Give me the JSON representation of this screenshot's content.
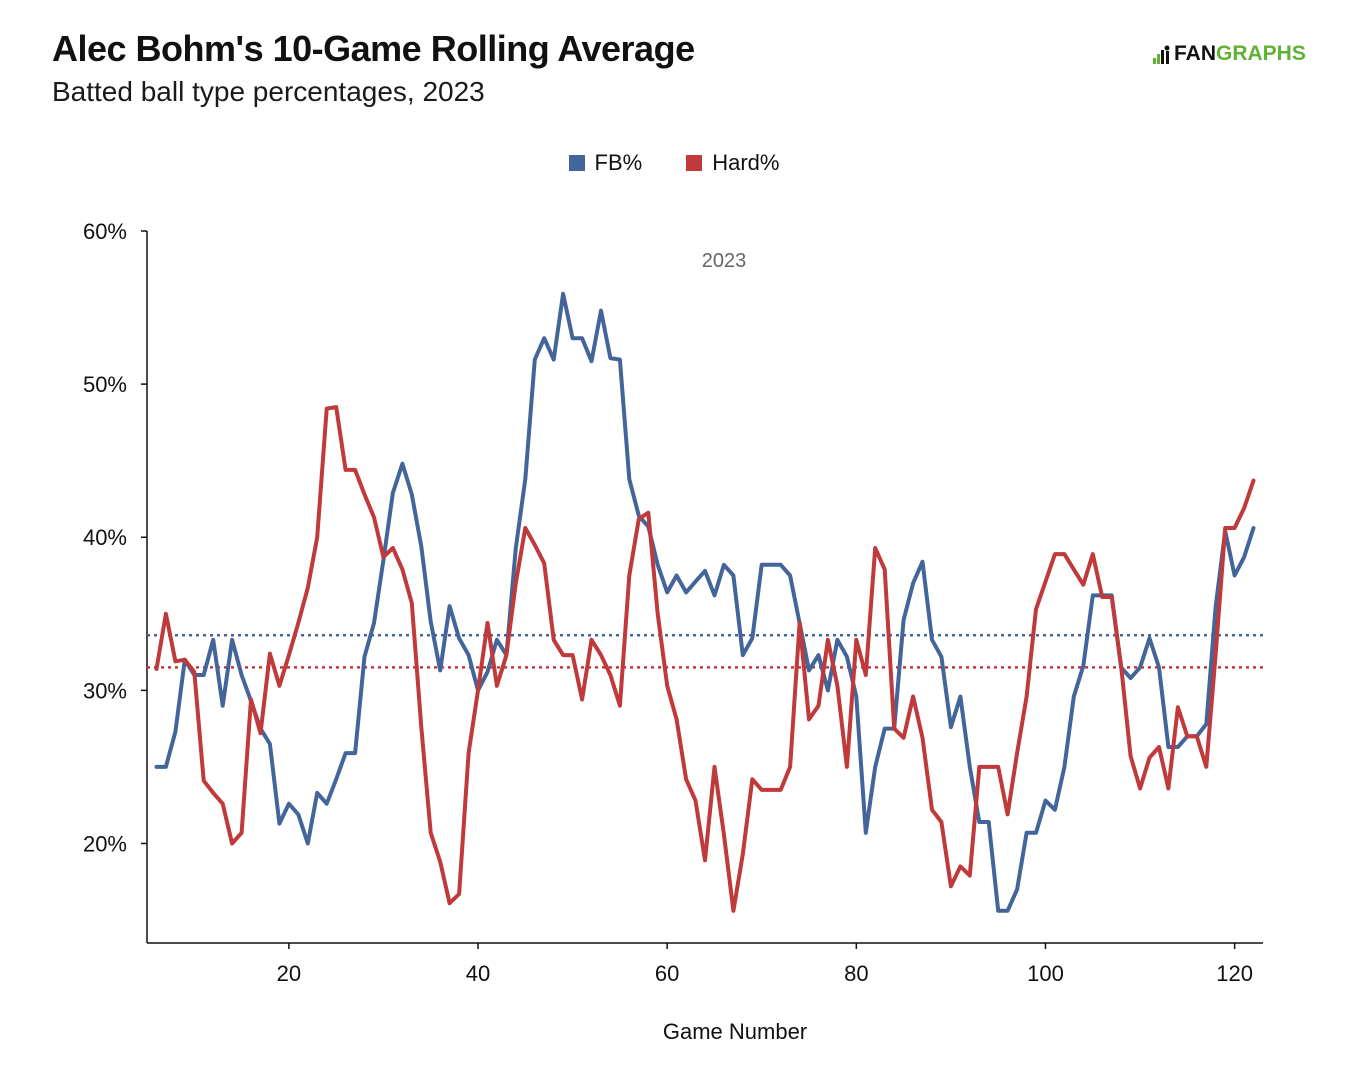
{
  "header": {
    "title": "Alec Bohm's 10-Game Rolling Average",
    "subtitle": "Batted ball type percentages, 2023",
    "logo_fan": "FAN",
    "logo_graphs": "GRAPHS"
  },
  "colors": {
    "fb": "#43659a",
    "hard": "#c0393b",
    "axis": "#111111",
    "annotation": "#666666",
    "logo_green": "#5fb233"
  },
  "chart_data": {
    "type": "line",
    "annotation": "2023",
    "xlabel": "Game Number",
    "ylabel": "",
    "xlim": [
      5,
      123
    ],
    "ylim": [
      13.5,
      60
    ],
    "xticks": [
      20,
      40,
      60,
      80,
      100,
      120
    ],
    "xtick_labels": [
      "20",
      "40",
      "60",
      "80",
      "100",
      "120"
    ],
    "yticks": [
      20,
      30,
      40,
      50,
      60
    ],
    "ytick_labels": [
      "20%",
      "30%",
      "40%",
      "50%",
      "60%"
    ],
    "legend_position": "top-center",
    "x": [
      6,
      7,
      8,
      9,
      10,
      11,
      12,
      13,
      14,
      15,
      16,
      17,
      18,
      19,
      20,
      21,
      22,
      23,
      24,
      25,
      26,
      27,
      28,
      29,
      30,
      31,
      32,
      33,
      34,
      35,
      36,
      37,
      38,
      39,
      40,
      41,
      42,
      43,
      44,
      45,
      46,
      47,
      48,
      49,
      50,
      51,
      52,
      53,
      54,
      55,
      56,
      57,
      58,
      59,
      60,
      61,
      62,
      63,
      64,
      65,
      66,
      67,
      68,
      69,
      70,
      71,
      72,
      73,
      74,
      75,
      76,
      77,
      78,
      79,
      80,
      81,
      82,
      83,
      84,
      85,
      86,
      87,
      88,
      89,
      90,
      91,
      92,
      93,
      94,
      95,
      96,
      97,
      98,
      99,
      100,
      101,
      102,
      103,
      104,
      105,
      106,
      107,
      108,
      109,
      110,
      111,
      112,
      113,
      114,
      115,
      116,
      117,
      118,
      119,
      120,
      121,
      122
    ],
    "series": [
      {
        "name": "FB%",
        "color": "#43659a",
        "values": [
          25,
          25,
          27.3,
          32,
          31,
          31,
          33.3,
          29,
          33.3,
          31,
          29.3,
          27.5,
          26.5,
          21.3,
          22.6,
          21.9,
          20,
          23.3,
          22.6,
          24.2,
          25.9,
          25.9,
          32.2,
          34.4,
          38.5,
          42.9,
          44.8,
          42.8,
          39.4,
          34.5,
          31.3,
          35.5,
          33.4,
          32.3,
          30,
          31.2,
          33.3,
          32.3,
          39.3,
          43.8,
          51.6,
          53,
          51.6,
          55.9,
          53,
          53,
          51.5,
          54.8,
          51.7,
          51.6,
          43.8,
          41.4,
          40.7,
          38.2,
          36.4,
          37.5,
          36.4,
          37.1,
          37.8,
          36.2,
          38.2,
          37.5,
          32.3,
          33.4,
          38.2,
          38.2,
          38.2,
          37.5,
          34.4,
          31.3,
          32.3,
          30,
          33.3,
          32.2,
          29.6,
          20.7,
          25,
          27.5,
          27.5,
          34.6,
          37,
          38.4,
          33.3,
          32.2,
          27.6,
          29.6,
          25,
          21.4,
          21.4,
          15.6,
          15.6,
          17,
          20.7,
          20.7,
          22.8,
          22.2,
          25,
          29.6,
          31.6,
          36.2,
          36.2,
          36.2,
          31.5,
          30.8,
          31.5,
          33.4,
          31.5,
          26.3,
          26.3,
          27,
          27,
          27.8,
          35.5,
          40.4,
          37.5,
          38.7,
          40.6
        ]
      },
      {
        "name": "Hard%",
        "color": "#c0393b",
        "values": [
          31.4,
          35,
          31.9,
          32,
          31.2,
          24.1,
          23.3,
          22.6,
          20,
          20.7,
          29.4,
          27.2,
          32.4,
          30.3,
          32.3,
          34.4,
          36.7,
          40,
          48.4,
          48.5,
          44.4,
          44.4,
          42.8,
          41.3,
          38.7,
          39.3,
          37.9,
          35.7,
          27.6,
          20.7,
          18.8,
          16.1,
          16.7,
          25.9,
          30,
          34.4,
          30.3,
          32.3,
          37,
          40.6,
          39.5,
          38.3,
          33.3,
          32.3,
          32.3,
          29.4,
          33.3,
          32.3,
          31,
          29,
          37.5,
          41.2,
          41.6,
          35,
          30.3,
          28.1,
          24.2,
          22.8,
          18.9,
          25,
          20.6,
          15.6,
          19.3,
          24.2,
          23.5,
          23.5,
          23.5,
          25,
          34.4,
          28.1,
          29,
          33.3,
          30.3,
          25,
          33.3,
          31,
          39.3,
          37.9,
          27.5,
          26.9,
          29.6,
          26.9,
          22.2,
          21.4,
          17.2,
          18.5,
          17.9,
          25,
          25,
          25,
          21.9,
          25.9,
          29.6,
          35.3,
          37.1,
          38.9,
          38.9,
          37.9,
          36.9,
          38.9,
          36.1,
          36.1,
          31.6,
          25.7,
          23.6,
          25.6,
          26.3,
          23.6,
          28.9,
          27,
          27,
          25,
          32.4,
          40.6,
          40.6,
          41.9,
          43.7
        ]
      }
    ],
    "reference_lines": [
      {
        "series": "FB%",
        "value": 33.6
      },
      {
        "series": "Hard%",
        "value": 31.5
      }
    ]
  }
}
